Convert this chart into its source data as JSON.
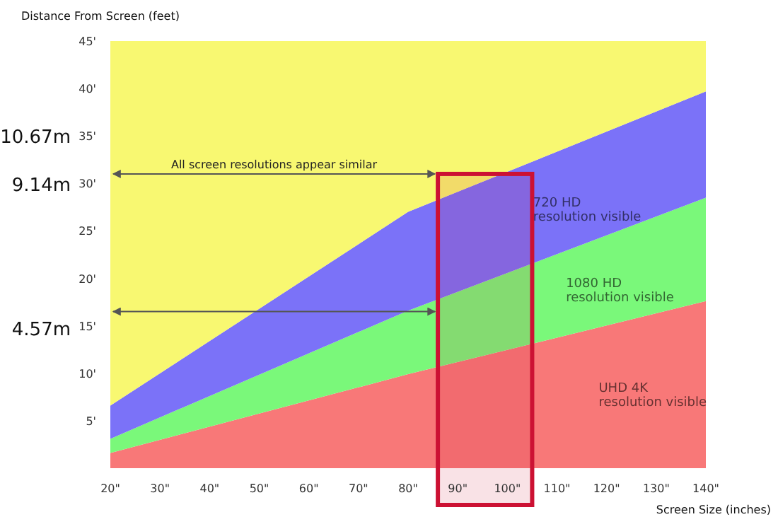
{
  "chart_data": {
    "type": "area",
    "stacked": true,
    "xlabel": "Screen Size (inches)",
    "ylabel": "Distance From Screen (feet)",
    "x": [
      20,
      80,
      140
    ],
    "series": [
      {
        "name": "UHD 4K resolution visible",
        "color": "#f87878",
        "values": [
          1.6,
          9.9,
          17.6
        ]
      },
      {
        "name": "1080 HD resolution visible",
        "color": "#7af87a",
        "values": [
          1.5,
          6.7,
          10.9
        ]
      },
      {
        "name": "720 HD resolution visible",
        "color": "#7b72f8",
        "values": [
          3.5,
          10.4,
          11.2
        ]
      },
      {
        "color": "#f8f871",
        "values": [
          38.4,
          18,
          5.3
        ]
      }
    ],
    "xlim": [
      20,
      140
    ],
    "ylim": [
      0,
      45
    ],
    "xticks": [
      {
        "value": 20,
        "label": "20\""
      },
      {
        "value": 30,
        "label": "30\""
      },
      {
        "value": 40,
        "label": "40\""
      },
      {
        "value": 50,
        "label": "50\""
      },
      {
        "value": 60,
        "label": "60\""
      },
      {
        "value": 70,
        "label": "70\""
      },
      {
        "value": 80,
        "label": "80\""
      },
      {
        "value": 90,
        "label": "90\""
      },
      {
        "value": 100,
        "label": "100\""
      },
      {
        "value": 110,
        "label": "110\""
      },
      {
        "value": 120,
        "label": "120\""
      },
      {
        "value": 130,
        "label": "130\""
      },
      {
        "value": 140,
        "label": "140\""
      }
    ],
    "yticks": [
      {
        "value": 5,
        "label": "5'"
      },
      {
        "value": 10,
        "label": "10'"
      },
      {
        "value": 15,
        "label": "15'"
      },
      {
        "value": 20,
        "label": "20'"
      },
      {
        "value": 25,
        "label": "25'"
      },
      {
        "value": 30,
        "label": "30'"
      },
      {
        "value": 35,
        "label": "35'"
      },
      {
        "value": 40,
        "label": "40'"
      },
      {
        "value": 45,
        "label": "45'"
      }
    ],
    "ref_lines": [
      {
        "axis": "y",
        "value": 31,
        "label": "All screen resolutions appear similar"
      },
      {
        "axis": "y",
        "value": 16.5
      }
    ],
    "bands": [
      {
        "axis": "x",
        "from": 86,
        "to": 105,
        "color": "#cc1133"
      }
    ],
    "annotations": [
      "10.67m",
      "9.14m",
      "4.57m"
    ],
    "grid": false
  }
}
